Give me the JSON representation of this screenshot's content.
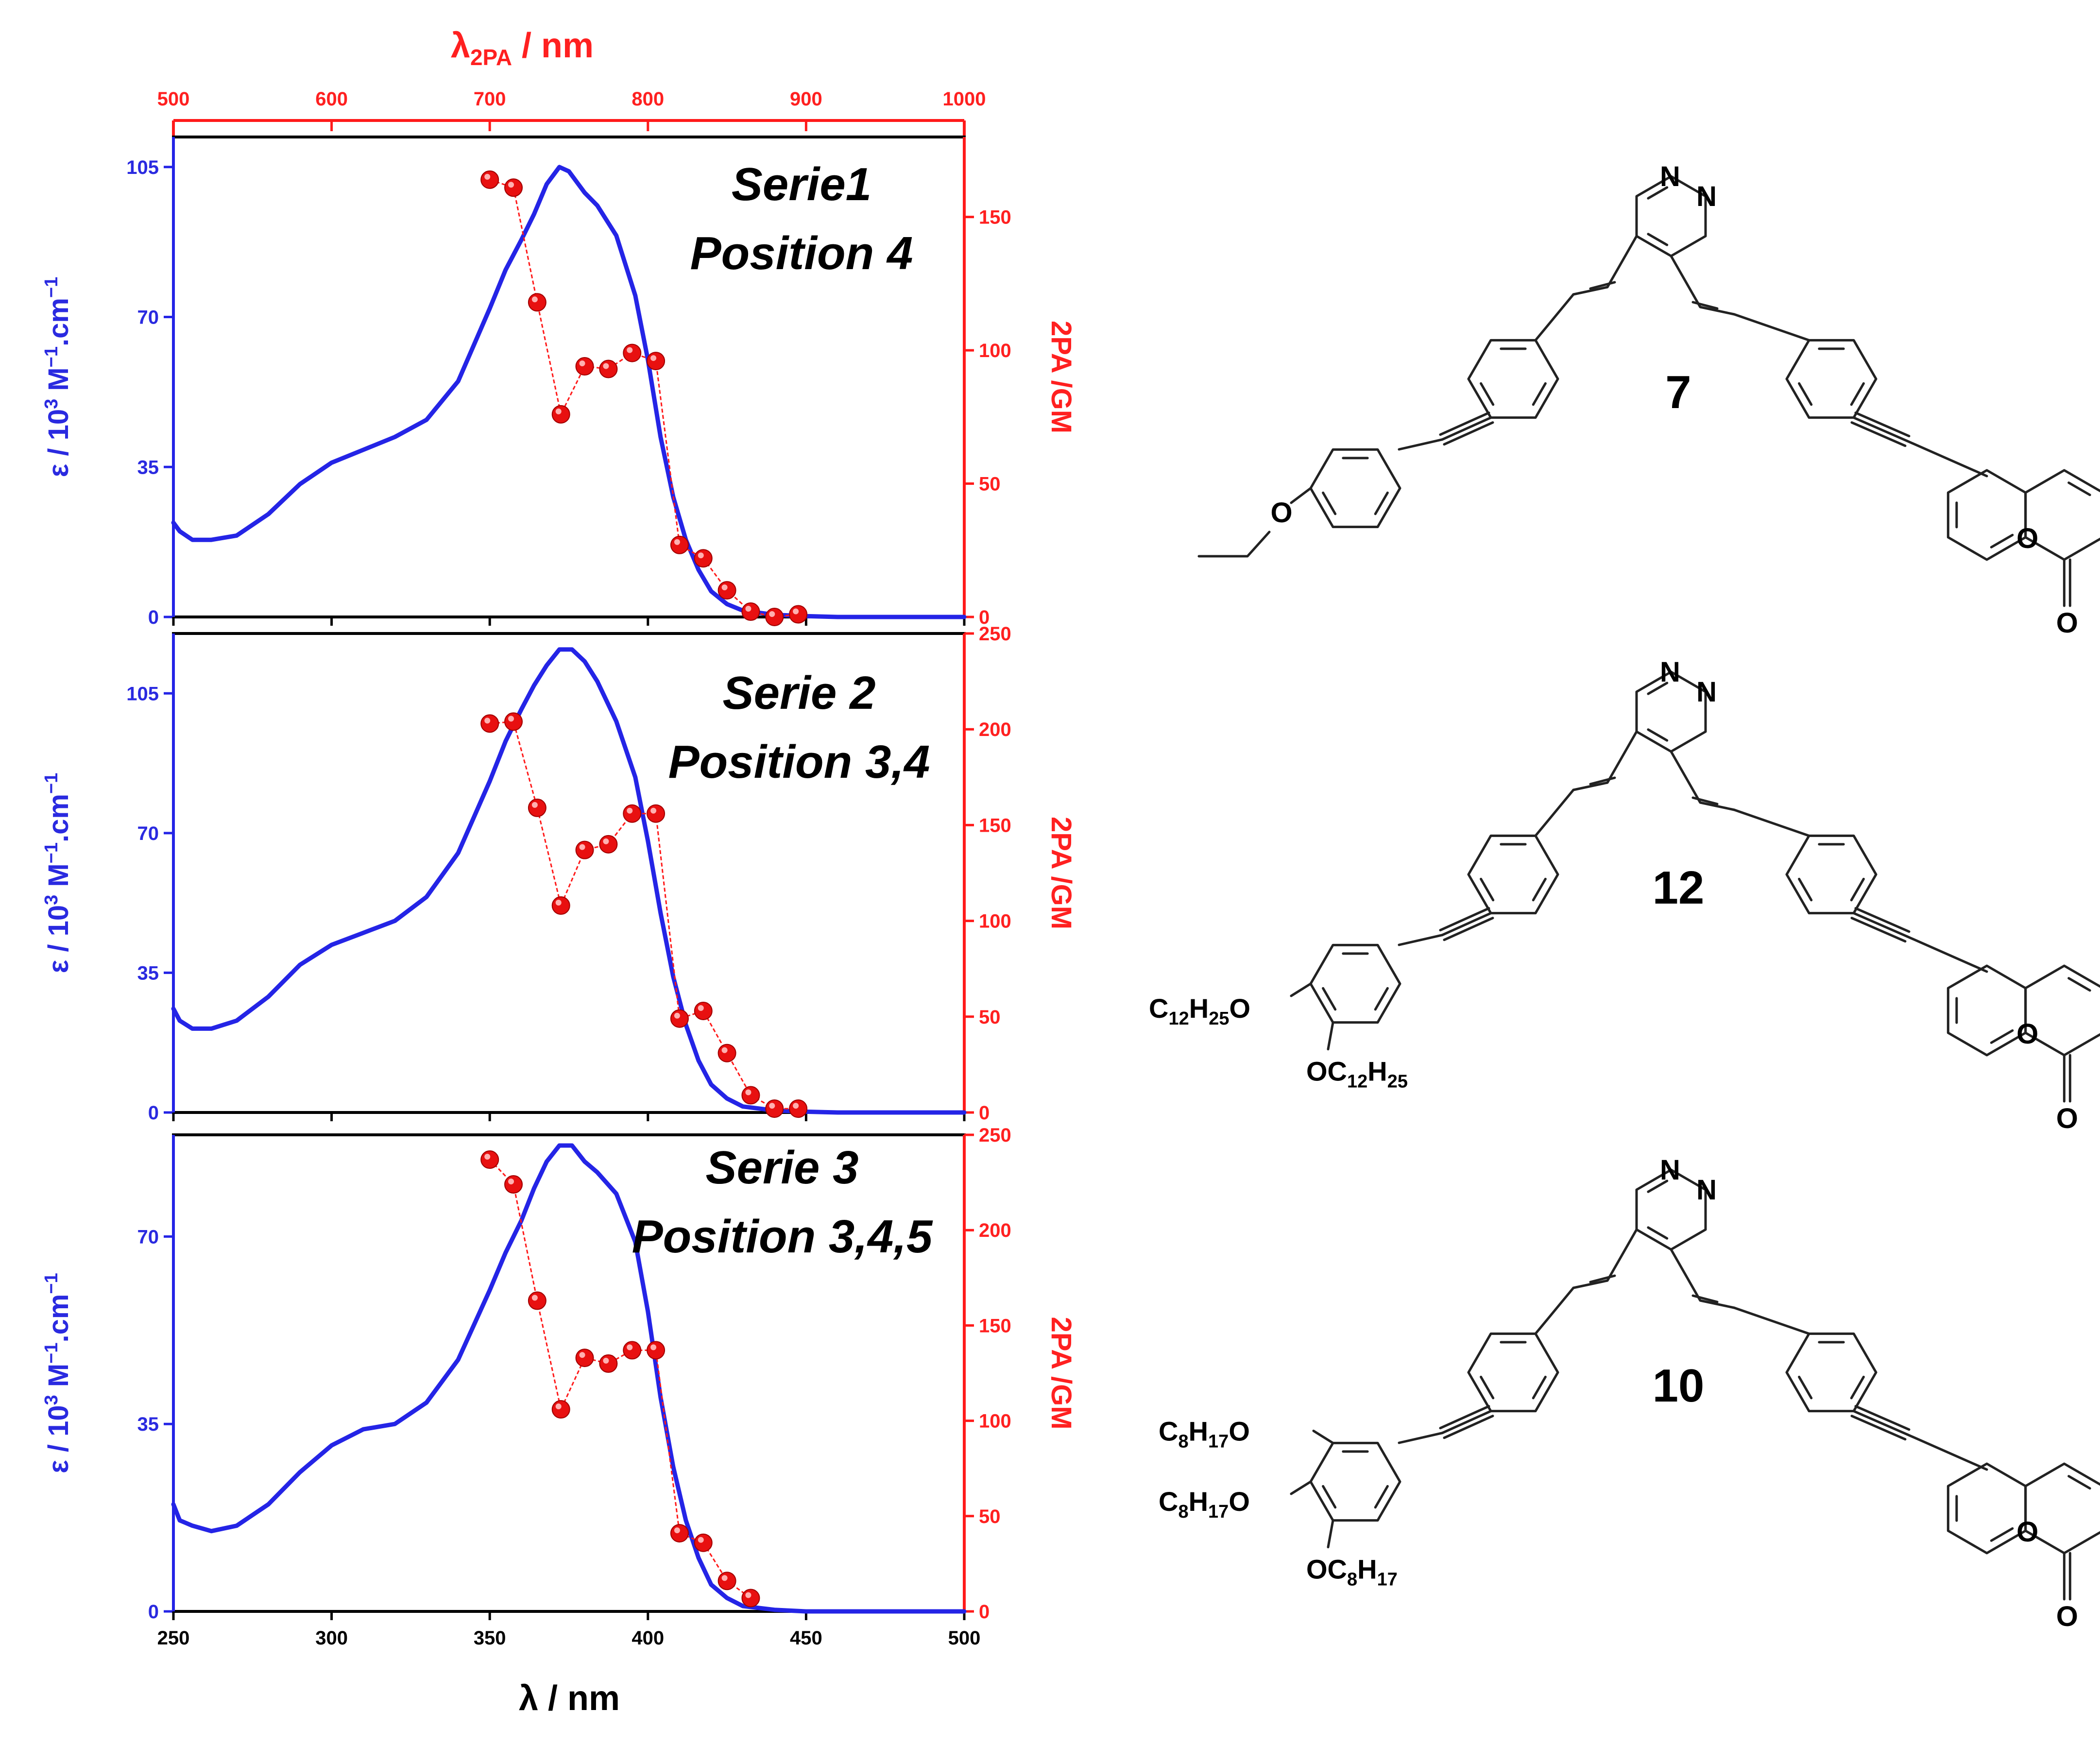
{
  "figure": {
    "top_axis_label_main": "λ",
    "top_axis_label_sub": "2PA",
    "top_axis_label_unit": " / nm",
    "bottom_axis_label": "λ / nm",
    "left_axis_label_a": "ε / 10",
    "left_axis_label_exp": "3",
    "left_axis_label_b": " M",
    "left_axis_label_exp2": "−1",
    "left_axis_label_c": ".cm",
    "left_axis_label_exp3": "−1",
    "right_axis_label": "2PA  /GM",
    "colors": {
      "absorption": "#2424e6",
      "tpa": "#ff1a1a",
      "frame": "#000000"
    }
  },
  "chart_data": [
    {
      "type": "line",
      "title_line1": "Serie1",
      "title_line2": "Position 4",
      "compound": "7",
      "x": {
        "label": "λ / nm",
        "range": [
          250,
          500
        ],
        "ticks": [
          250,
          300,
          350,
          400,
          450,
          500
        ]
      },
      "x_top": {
        "label": "λ2PA / nm",
        "range": [
          500,
          1000
        ],
        "ticks": [
          500,
          600,
          700,
          800,
          900,
          1000
        ]
      },
      "y_left": {
        "label": "ε / 10^3 M^-1.cm^-1",
        "range": [
          0,
          112
        ],
        "ticks": [
          0,
          35,
          70,
          105
        ]
      },
      "y_right": {
        "label": "2PA /GM",
        "range": [
          0,
          180
        ],
        "ticks": [
          0,
          50,
          100,
          150
        ]
      },
      "absorption": {
        "x": [
          250,
          252,
          256,
          262,
          270,
          280,
          290,
          300,
          310,
          320,
          330,
          340,
          350,
          355,
          360,
          364,
          368,
          372,
          375,
          378,
          380,
          384,
          390,
          396,
          400,
          404,
          408,
          412,
          416,
          420,
          425,
          430,
          440,
          450,
          460,
          480,
          500
        ],
        "y": [
          22,
          20,
          18,
          18,
          19,
          24,
          31,
          36,
          39,
          42,
          46,
          55,
          72,
          81,
          88,
          94,
          101,
          105,
          104,
          101,
          99,
          96,
          89,
          75,
          60,
          42,
          28,
          18,
          11,
          6,
          3,
          1.5,
          0.5,
          0.2,
          0,
          0,
          0
        ]
      },
      "tpa": {
        "x": [
          700,
          715,
          730,
          745,
          760,
          775,
          790,
          805,
          820,
          835,
          850,
          865,
          880,
          895
        ],
        "y": [
          164,
          161,
          118,
          76,
          94,
          93,
          99,
          96,
          27,
          22,
          10,
          2,
          0,
          1
        ]
      }
    },
    {
      "type": "line",
      "title_line1": "Serie 2",
      "title_line2": "Position 3,4",
      "compound": "12",
      "x": {
        "label": "λ / nm",
        "range": [
          250,
          500
        ],
        "ticks": [
          250,
          300,
          350,
          400,
          450,
          500
        ]
      },
      "y_left": {
        "label": "ε / 10^3 M^-1.cm^-1",
        "range": [
          0,
          120
        ],
        "ticks": [
          0,
          35,
          70,
          105
        ]
      },
      "y_right": {
        "label": "2PA /GM",
        "range": [
          0,
          250
        ],
        "ticks": [
          0,
          50,
          100,
          150,
          200,
          250
        ]
      },
      "absorption": {
        "x": [
          250,
          252,
          256,
          262,
          270,
          280,
          290,
          300,
          310,
          320,
          330,
          340,
          350,
          355,
          360,
          364,
          368,
          372,
          376,
          380,
          384,
          390,
          396,
          400,
          404,
          408,
          412,
          416,
          420,
          425,
          430,
          440,
          450,
          460,
          480,
          500
        ],
        "y": [
          26,
          23,
          21,
          21,
          23,
          29,
          37,
          42,
          45,
          48,
          54,
          65,
          83,
          93,
          101,
          107,
          112,
          116,
          116,
          113,
          108,
          98,
          84,
          68,
          50,
          34,
          22,
          13,
          7,
          3.5,
          1.5,
          0.5,
          0.2,
          0,
          0,
          0
        ]
      },
      "tpa": {
        "x": [
          700,
          715,
          730,
          745,
          760,
          775,
          790,
          805,
          820,
          835,
          850,
          865,
          880,
          895
        ],
        "y": [
          203,
          204,
          159,
          108,
          137,
          140,
          156,
          156,
          49,
          53,
          31,
          9,
          2,
          2
        ]
      }
    },
    {
      "type": "line",
      "title_line1": "Serie 3",
      "title_line2": "Position 3,4,5",
      "compound": "10",
      "x": {
        "label": "λ / nm",
        "range": [
          250,
          500
        ],
        "ticks": [
          250,
          300,
          350,
          400,
          450,
          500
        ]
      },
      "y_left": {
        "label": "ε / 10^3 M^-1.cm^-1",
        "range": [
          0,
          89
        ],
        "ticks": [
          0,
          35,
          70
        ]
      },
      "y_right": {
        "label": "2PA /GM",
        "range": [
          0,
          250
        ],
        "ticks": [
          0,
          50,
          100,
          150,
          200,
          250
        ]
      },
      "absorption": {
        "x": [
          250,
          252,
          256,
          262,
          270,
          280,
          290,
          300,
          310,
          320,
          330,
          340,
          350,
          355,
          360,
          364,
          368,
          372,
          376,
          380,
          384,
          390,
          396,
          400,
          404,
          408,
          412,
          416,
          420,
          425,
          430,
          440,
          450,
          460,
          480,
          500
        ],
        "y": [
          20,
          17,
          16,
          15,
          16,
          20,
          26,
          31,
          34,
          35,
          39,
          47,
          60,
          67,
          73,
          79,
          84,
          87,
          87,
          84,
          82,
          78,
          69,
          56,
          40,
          27,
          17,
          10,
          5,
          2.5,
          1,
          0.3,
          0,
          0,
          0,
          0
        ]
      },
      "tpa": {
        "x": [
          700,
          715,
          730,
          745,
          760,
          775,
          790,
          805,
          820,
          835,
          850,
          865
        ],
        "y": [
          237,
          224,
          163,
          106,
          133,
          130,
          137,
          137,
          41,
          36,
          16,
          7
        ]
      }
    }
  ],
  "structures": [
    {
      "label": "7",
      "core": [
        "N",
        "N"
      ],
      "substituents": [
        "O"
      ],
      "lactone": [
        "O",
        "O"
      ]
    },
    {
      "label": "12",
      "core": [
        "N",
        "N"
      ],
      "sub_a": {
        "pre": "C",
        "s1": "12",
        "mid": "H",
        "s2": "25",
        "post": "O"
      },
      "sub_b": {
        "pre": "OC",
        "s1": "12",
        "mid": "H",
        "s2": "25",
        "post": ""
      },
      "lactone": [
        "O",
        "O"
      ]
    },
    {
      "label": "10",
      "core": [
        "N",
        "N"
      ],
      "sub_a": {
        "pre": "C",
        "s1": "8",
        "mid": "H",
        "s2": "17",
        "post": "O"
      },
      "sub_b": {
        "pre": "C",
        "s1": "8",
        "mid": "H",
        "s2": "17",
        "post": "O"
      },
      "sub_c": {
        "pre": "OC",
        "s1": "8",
        "mid": "H",
        "s2": "17",
        "post": ""
      },
      "lactone": [
        "O",
        "O"
      ]
    }
  ]
}
